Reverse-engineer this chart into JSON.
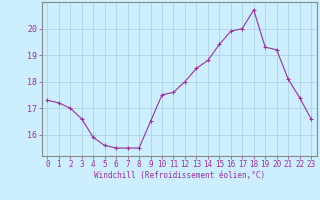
{
  "x": [
    0,
    1,
    2,
    3,
    4,
    5,
    6,
    7,
    8,
    9,
    10,
    11,
    12,
    13,
    14,
    15,
    16,
    17,
    18,
    19,
    20,
    21,
    22,
    23
  ],
  "y": [
    17.3,
    17.2,
    17.0,
    16.6,
    15.9,
    15.6,
    15.5,
    15.5,
    15.5,
    16.5,
    17.5,
    17.6,
    18.0,
    18.5,
    18.8,
    19.4,
    19.9,
    20.0,
    20.7,
    19.3,
    19.2,
    18.1,
    17.4,
    16.6
  ],
  "line_color": "#993399",
  "marker": "P",
  "marker_size": 2.0,
  "bg_color": "#cceeff",
  "grid_color": "#aaccdd",
  "xlabel": "Windchill (Refroidissement éolien,°C)",
  "yticks": [
    16,
    17,
    18,
    19,
    20
  ],
  "xticks": [
    0,
    1,
    2,
    3,
    4,
    5,
    6,
    7,
    8,
    9,
    10,
    11,
    12,
    13,
    14,
    15,
    16,
    17,
    18,
    19,
    20,
    21,
    22,
    23
  ],
  "xlim": [
    -0.5,
    23.5
  ],
  "ylim": [
    15.2,
    21.0
  ],
  "tick_label_color": "#993399",
  "xlabel_color": "#993399",
  "axis_color": "#888888",
  "font_size": 5.5,
  "xlabel_font_size": 5.5
}
